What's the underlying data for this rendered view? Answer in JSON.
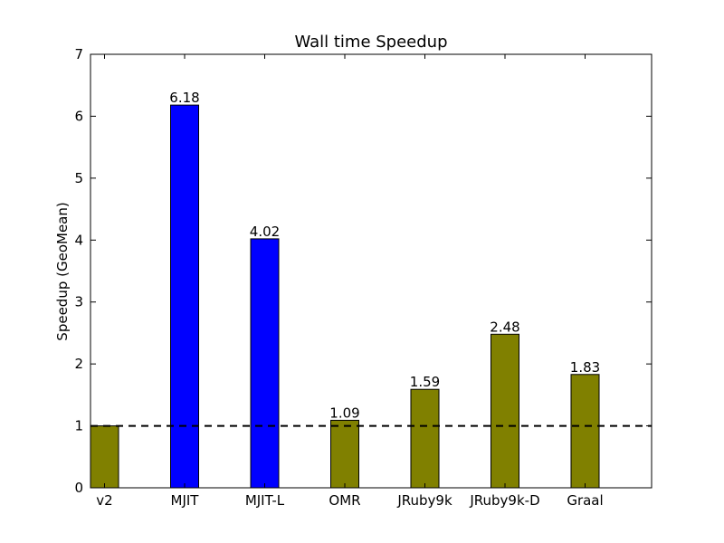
{
  "chart_data": {
    "type": "bar",
    "title": "Wall time Speedup",
    "xlabel": "",
    "ylabel": "Speedup (GeoMean)",
    "ylim": [
      0,
      7
    ],
    "yticks": [
      "0",
      "1",
      "2",
      "3",
      "4",
      "5",
      "6",
      "7"
    ],
    "categories": [
      "v2",
      "MJIT",
      "MJIT-L",
      "OMR",
      "JRuby9k",
      "JRuby9k-D",
      "Graal"
    ],
    "values": [
      1.0,
      6.18,
      4.02,
      1.09,
      1.59,
      2.48,
      1.83
    ],
    "value_labels": [
      "",
      "6.18",
      "4.02",
      "1.09",
      "1.59",
      "2.48",
      "1.83"
    ],
    "bar_colors": [
      "#808000",
      "#0000ff",
      "#0000ff",
      "#808000",
      "#808000",
      "#808000",
      "#808000"
    ],
    "reference_line": {
      "y": 1,
      "style": "dashed",
      "color": "#000000"
    },
    "grid": false,
    "legend": "none"
  }
}
